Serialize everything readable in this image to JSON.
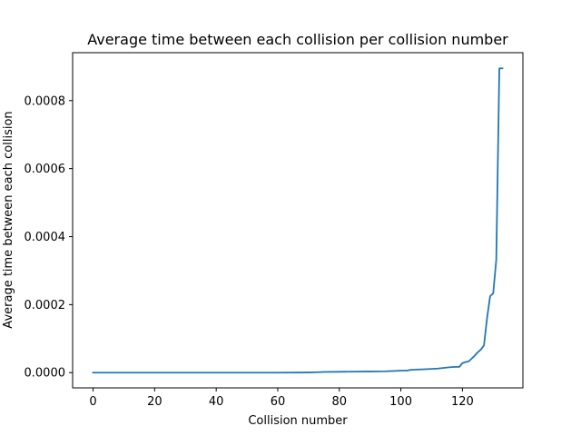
{
  "chart_data": {
    "type": "line",
    "title": "Average time between each collision per collision number",
    "xlabel": "Collision number",
    "ylabel": "Average time between each collision",
    "xlim": [
      -6.65,
      139.65
    ],
    "ylim": [
      -4.48e-05,
      0.000941
    ],
    "xticks": [
      0,
      20,
      40,
      60,
      80,
      100,
      120
    ],
    "xtick_labels": [
      "0",
      "20",
      "40",
      "60",
      "80",
      "100",
      "120"
    ],
    "yticks": [
      0,
      0.0002,
      0.0004,
      0.0006,
      0.0008
    ],
    "ytick_labels": [
      "0.0000",
      "0.0002",
      "0.0004",
      "0.0006",
      "0.0008"
    ],
    "grid": false,
    "series": [
      {
        "color": "#1f77b4",
        "x": [
          0,
          10,
          20,
          30,
          40,
          50,
          60,
          70,
          72,
          75,
          80,
          85,
          90,
          95,
          98,
          100,
          102,
          103,
          105,
          108,
          110,
          112,
          114,
          116,
          118,
          119,
          120,
          121,
          122,
          123,
          124,
          125,
          126,
          127,
          128,
          129,
          130,
          131,
          132,
          133
        ],
        "y": [
          0,
          0,
          0,
          0,
          0,
          0,
          0,
          5e-07,
          1e-06,
          2e-06,
          2.5e-06,
          3e-06,
          3.5e-06,
          4e-06,
          5e-06,
          6e-06,
          6e-06,
          8e-06,
          9e-06,
          1e-05,
          1.1e-05,
          1.2e-05,
          1.4e-05,
          1.6e-05,
          1.7e-05,
          1.7e-05,
          2.8e-05,
          3.1e-05,
          3.3e-05,
          4.1e-05,
          5e-05,
          6e-05,
          6.8e-05,
          8e-05,
          0.00016,
          0.000225,
          0.000233,
          0.000332,
          0.000895,
          0.000895
        ]
      }
    ]
  }
}
